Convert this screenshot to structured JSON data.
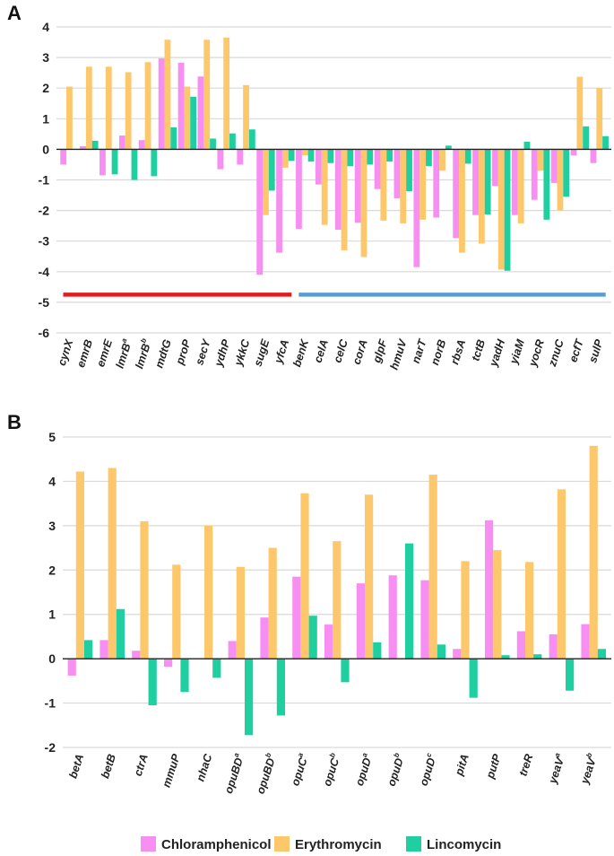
{
  "colors": {
    "chloramphenicol": "#f78ff2",
    "erythromycin": "#fdc76b",
    "lincomycin": "#1fcf9f",
    "grid": "#d9d9d9",
    "axis": "#222222",
    "red_bracket": "#e31a1c",
    "blue_bracket": "#5b9bd5"
  },
  "legend": {
    "items": [
      {
        "label": "Chloramphenicol",
        "color_key": "chloramphenicol"
      },
      {
        "label": "Erythromycin",
        "color_key": "erythromycin"
      },
      {
        "label": "Lincomycin",
        "color_key": "lincomycin"
      }
    ]
  },
  "chart_data": [
    {
      "panel": "A",
      "type": "bar",
      "title": "",
      "xlabel": "",
      "ylabel": "",
      "ylim": [
        -6,
        4
      ],
      "yticks": [
        "-6",
        "-5",
        "-4",
        "-3",
        "-2",
        "-1",
        "0",
        "1",
        "2",
        "3",
        "4"
      ],
      "grid": true,
      "categories": [
        {
          "name": "cynX",
          "sup": ""
        },
        {
          "name": "emrB",
          "sup": ""
        },
        {
          "name": "emrE",
          "sup": ""
        },
        {
          "name": "lmrB",
          "sup": "a"
        },
        {
          "name": "lmrB",
          "sup": "b"
        },
        {
          "name": "mdtG",
          "sup": ""
        },
        {
          "name": "proP",
          "sup": ""
        },
        {
          "name": "secY",
          "sup": ""
        },
        {
          "name": "ydhP",
          "sup": ""
        },
        {
          "name": "ykkC",
          "sup": ""
        },
        {
          "name": "sugE",
          "sup": ""
        },
        {
          "name": "yfcA",
          "sup": ""
        },
        {
          "name": "benK",
          "sup": ""
        },
        {
          "name": "celA",
          "sup": ""
        },
        {
          "name": "celC",
          "sup": ""
        },
        {
          "name": "corA",
          "sup": ""
        },
        {
          "name": "glpF",
          "sup": ""
        },
        {
          "name": "hmuV",
          "sup": ""
        },
        {
          "name": "narT",
          "sup": ""
        },
        {
          "name": "norB",
          "sup": ""
        },
        {
          "name": "rbsA",
          "sup": ""
        },
        {
          "name": "tctB",
          "sup": ""
        },
        {
          "name": "yadH",
          "sup": ""
        },
        {
          "name": "yiaM",
          "sup": ""
        },
        {
          "name": "yocR",
          "sup": ""
        },
        {
          "name": "znuC",
          "sup": ""
        },
        {
          "name": "ecfT",
          "sup": ""
        },
        {
          "name": "sulP",
          "sup": ""
        }
      ],
      "series": [
        {
          "name": "Chloramphenicol",
          "color_key": "chloramphenicol",
          "values": [
            -0.5,
            0.1,
            -0.85,
            0.45,
            0.3,
            2.97,
            2.83,
            2.38,
            -0.65,
            -0.5,
            -4.1,
            -3.38,
            -2.6,
            -1.15,
            -2.63,
            -2.4,
            -1.3,
            -1.6,
            -3.85,
            -2.23,
            -2.9,
            -2.15,
            -1.2,
            -2.15,
            -1.65,
            -1.1,
            -0.2,
            -0.45
          ]
        },
        {
          "name": "Erythromycin",
          "color_key": "erythromycin",
          "values": [
            2.05,
            2.7,
            2.7,
            2.52,
            2.85,
            3.58,
            2.05,
            3.58,
            3.65,
            2.1,
            -2.15,
            -0.6,
            -0.2,
            -2.47,
            -3.3,
            -3.52,
            -2.33,
            -2.42,
            -2.3,
            -0.7,
            -3.38,
            -3.08,
            -3.93,
            -2.42,
            -0.7,
            -2.0,
            2.37,
            2.0
          ]
        },
        {
          "name": "Lincomycin",
          "color_key": "lincomycin",
          "values": [
            0.0,
            0.28,
            -0.82,
            -1.0,
            -0.88,
            0.72,
            1.72,
            0.35,
            0.52,
            0.65,
            -1.35,
            -0.38,
            -0.4,
            -0.45,
            -0.55,
            -0.5,
            -0.4,
            -1.37,
            -0.55,
            0.12,
            -0.47,
            -2.13,
            -3.97,
            0.25,
            -2.3,
            -1.55,
            0.75,
            0.43
          ]
        }
      ],
      "brackets": [
        {
          "value": -4.75,
          "from_index": 0,
          "to_index": 11,
          "color_key": "red_bracket"
        },
        {
          "value": -4.75,
          "from_index": 12,
          "to_index": 27,
          "color_key": "blue_bracket"
        }
      ]
    },
    {
      "panel": "B",
      "type": "bar",
      "title": "",
      "xlabel": "",
      "ylabel": "",
      "ylim": [
        -2,
        5
      ],
      "yticks": [
        "-2",
        "-1",
        "0",
        "1",
        "2",
        "3",
        "4",
        "5"
      ],
      "grid": true,
      "categories": [
        {
          "name": "betA",
          "sup": ""
        },
        {
          "name": "betB",
          "sup": ""
        },
        {
          "name": "ctrA",
          "sup": ""
        },
        {
          "name": "mmuP",
          "sup": ""
        },
        {
          "name": "nhaC",
          "sup": ""
        },
        {
          "name": "opuBD",
          "sup": "a"
        },
        {
          "name": "opuBD",
          "sup": "b"
        },
        {
          "name": "opuC",
          "sup": "a"
        },
        {
          "name": "opuC",
          "sup": "b"
        },
        {
          "name": "opuD",
          "sup": "a"
        },
        {
          "name": "opuD",
          "sup": "b"
        },
        {
          "name": "opuD",
          "sup": "c"
        },
        {
          "name": "pitA",
          "sup": ""
        },
        {
          "name": "putP",
          "sup": ""
        },
        {
          "name": "treR",
          "sup": ""
        },
        {
          "name": "yeaV",
          "sup": "a"
        },
        {
          "name": "yeaV",
          "sup": "b"
        }
      ],
      "series": [
        {
          "name": "Chloramphenicol",
          "color_key": "chloramphenicol",
          "values": [
            -0.38,
            0.42,
            0.18,
            -0.18,
            0.0,
            0.4,
            0.93,
            1.85,
            0.77,
            1.7,
            1.88,
            1.77,
            0.22,
            3.12,
            0.62,
            0.55,
            0.78
          ]
        },
        {
          "name": "Erythromycin",
          "color_key": "erythromycin",
          "values": [
            4.22,
            4.3,
            3.1,
            2.12,
            3.0,
            2.07,
            2.5,
            3.73,
            2.65,
            3.7,
            0.0,
            4.15,
            2.2,
            2.45,
            2.18,
            3.82,
            4.8
          ]
        },
        {
          "name": "Lincomycin",
          "color_key": "lincomycin",
          "values": [
            0.42,
            1.12,
            -1.05,
            -0.75,
            -0.43,
            -1.72,
            -1.28,
            0.97,
            -0.53,
            0.37,
            2.6,
            0.32,
            -0.88,
            0.08,
            0.1,
            -0.72,
            0.22
          ]
        }
      ]
    }
  ]
}
